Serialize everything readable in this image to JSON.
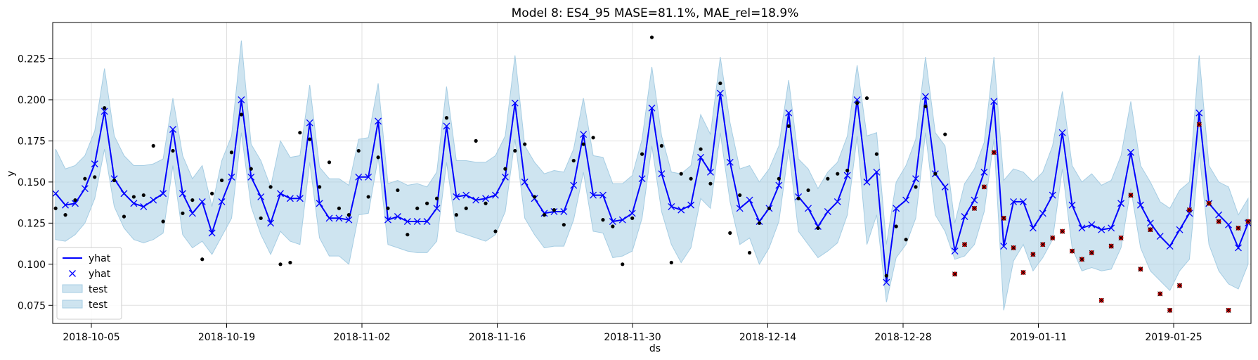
{
  "chart_data": {
    "type": "line",
    "title": "Model 8: ES4_95 MASE=81.1%, MAE_rel=18.9%",
    "xlabel": "ds",
    "ylabel": "y",
    "x_start": "2018-10-01",
    "x_end": "2019-02-02",
    "ylim": [
      0.064,
      0.247
    ],
    "grid": true,
    "legend_position": "lower-left",
    "x_ticks": [
      "2018-10-05",
      "2018-10-19",
      "2018-11-02",
      "2018-11-16",
      "2018-11-30",
      "2018-12-14",
      "2018-12-28",
      "2019-01-11",
      "2019-01-25"
    ],
    "y_ticks": [
      "0.075",
      "0.100",
      "0.125",
      "0.150",
      "0.175",
      "0.200",
      "0.225"
    ],
    "legend": [
      {
        "label": "yhat",
        "kind": "line"
      },
      {
        "label": "yhat",
        "kind": "marker"
      },
      {
        "label": "test",
        "kind": "band"
      },
      {
        "label": "test",
        "kind": "band"
      }
    ],
    "colors": {
      "yhat": "#0000ff",
      "band": "#a6cde3",
      "actual": "#000000",
      "test_actual": "#cc0000"
    },
    "yhat": [
      0.143,
      0.136,
      0.137,
      0.146,
      0.161,
      0.193,
      0.152,
      0.143,
      0.137,
      0.135,
      0.139,
      0.143,
      0.182,
      0.143,
      0.131,
      0.138,
      0.119,
      0.138,
      0.153,
      0.2,
      0.153,
      0.141,
      0.125,
      0.143,
      0.14,
      0.14,
      0.186,
      0.137,
      0.128,
      0.128,
      0.127,
      0.153,
      0.153,
      0.187,
      0.127,
      0.129,
      0.126,
      0.126,
      0.126,
      0.134,
      0.184,
      0.141,
      0.142,
      0.139,
      0.14,
      0.142,
      0.153,
      0.198,
      0.15,
      0.14,
      0.131,
      0.132,
      0.132,
      0.148,
      0.179,
      0.142,
      0.142,
      0.126,
      0.127,
      0.131,
      0.152,
      0.195,
      0.155,
      0.135,
      0.133,
      0.136,
      0.165,
      0.156,
      0.204,
      0.162,
      0.134,
      0.139,
      0.126,
      0.134,
      0.148,
      0.192,
      0.141,
      0.134,
      0.123,
      0.132,
      0.138,
      0.154,
      0.2,
      0.15,
      0.156,
      0.089,
      0.134,
      0.139,
      0.152,
      0.202,
      0.155,
      0.147,
      0.108,
      0.129,
      0.139,
      0.156,
      0.199,
      0.111,
      0.138,
      0.138,
      0.122,
      0.131,
      0.142,
      0.18,
      0.136,
      0.122,
      0.124,
      0.121,
      0.122,
      0.137,
      0.168,
      0.136,
      0.125,
      0.117,
      0.111,
      0.121,
      0.131,
      0.192,
      0.137,
      0.13,
      0.124,
      0.11,
      0.125
    ],
    "lower": [
      0.115,
      0.114,
      0.118,
      0.125,
      0.14,
      0.17,
      0.135,
      0.122,
      0.115,
      0.113,
      0.115,
      0.119,
      0.16,
      0.118,
      0.11,
      0.114,
      0.106,
      0.117,
      0.128,
      0.18,
      0.135,
      0.118,
      0.106,
      0.12,
      0.114,
      0.112,
      0.162,
      0.116,
      0.105,
      0.105,
      0.1,
      0.13,
      0.131,
      0.165,
      0.112,
      0.11,
      0.108,
      0.107,
      0.107,
      0.114,
      0.162,
      0.12,
      0.118,
      0.116,
      0.114,
      0.118,
      0.132,
      0.176,
      0.128,
      0.118,
      0.11,
      0.111,
      0.111,
      0.127,
      0.156,
      0.12,
      0.119,
      0.104,
      0.105,
      0.108,
      0.128,
      0.172,
      0.132,
      0.112,
      0.101,
      0.11,
      0.14,
      0.134,
      0.18,
      0.138,
      0.112,
      0.116,
      0.1,
      0.11,
      0.126,
      0.17,
      0.12,
      0.112,
      0.104,
      0.108,
      0.113,
      0.13,
      0.178,
      0.112,
      0.13,
      0.077,
      0.104,
      0.112,
      0.128,
      0.18,
      0.13,
      0.12,
      0.103,
      0.105,
      0.112,
      0.132,
      0.176,
      0.072,
      0.102,
      0.112,
      0.096,
      0.104,
      0.115,
      0.158,
      0.11,
      0.096,
      0.098,
      0.096,
      0.097,
      0.11,
      0.146,
      0.11,
      0.096,
      0.09,
      0.084,
      0.096,
      0.103,
      0.168,
      0.112,
      0.096,
      0.088,
      0.085,
      0.1
    ],
    "upper": [
      0.17,
      0.158,
      0.16,
      0.166,
      0.181,
      0.219,
      0.178,
      0.166,
      0.16,
      0.16,
      0.161,
      0.164,
      0.201,
      0.166,
      0.152,
      0.16,
      0.135,
      0.163,
      0.178,
      0.236,
      0.173,
      0.163,
      0.147,
      0.175,
      0.165,
      0.166,
      0.209,
      0.159,
      0.152,
      0.152,
      0.148,
      0.176,
      0.177,
      0.21,
      0.149,
      0.151,
      0.148,
      0.149,
      0.147,
      0.156,
      0.208,
      0.163,
      0.163,
      0.162,
      0.162,
      0.166,
      0.178,
      0.227,
      0.172,
      0.162,
      0.155,
      0.157,
      0.156,
      0.17,
      0.201,
      0.166,
      0.165,
      0.149,
      0.149,
      0.154,
      0.176,
      0.22,
      0.178,
      0.156,
      0.155,
      0.16,
      0.191,
      0.179,
      0.226,
      0.186,
      0.158,
      0.16,
      0.15,
      0.158,
      0.172,
      0.212,
      0.164,
      0.158,
      0.146,
      0.156,
      0.162,
      0.178,
      0.221,
      0.178,
      0.18,
      0.112,
      0.15,
      0.16,
      0.176,
      0.226,
      0.18,
      0.172,
      0.125,
      0.149,
      0.158,
      0.174,
      0.226,
      0.151,
      0.158,
      0.156,
      0.15,
      0.156,
      0.172,
      0.205,
      0.16,
      0.15,
      0.155,
      0.148,
      0.151,
      0.166,
      0.199,
      0.16,
      0.15,
      0.138,
      0.134,
      0.145,
      0.15,
      0.227,
      0.16,
      0.15,
      0.147,
      0.13,
      0.14
    ],
    "actual": [
      {
        "x": 0,
        "y": 0.134
      },
      {
        "x": 1,
        "y": 0.13
      },
      {
        "x": 2,
        "y": 0.139
      },
      {
        "x": 3,
        "y": 0.152
      },
      {
        "x": 4,
        "y": 0.153
      },
      {
        "x": 5,
        "y": 0.195
      },
      {
        "x": 6,
        "y": 0.151
      },
      {
        "x": 7,
        "y": 0.129
      },
      {
        "x": 8,
        "y": 0.141
      },
      {
        "x": 9,
        "y": 0.142
      },
      {
        "x": 10,
        "y": 0.172
      },
      {
        "x": 11,
        "y": 0.126
      },
      {
        "x": 12,
        "y": 0.169
      },
      {
        "x": 13,
        "y": 0.131
      },
      {
        "x": 14,
        "y": 0.139
      },
      {
        "x": 15,
        "y": 0.103
      },
      {
        "x": 16,
        "y": 0.143
      },
      {
        "x": 17,
        "y": 0.151
      },
      {
        "x": 18,
        "y": 0.168
      },
      {
        "x": 19,
        "y": 0.191
      },
      {
        "x": 20,
        "y": 0.158
      },
      {
        "x": 21,
        "y": 0.128
      },
      {
        "x": 22,
        "y": 0.147
      },
      {
        "x": 23,
        "y": 0.1
      },
      {
        "x": 24,
        "y": 0.101
      },
      {
        "x": 25,
        "y": 0.18
      },
      {
        "x": 26,
        "y": 0.176
      },
      {
        "x": 27,
        "y": 0.147
      },
      {
        "x": 28,
        "y": 0.162
      },
      {
        "x": 29,
        "y": 0.134
      },
      {
        "x": 30,
        "y": 0.13
      },
      {
        "x": 31,
        "y": 0.169
      },
      {
        "x": 32,
        "y": 0.141
      },
      {
        "x": 33,
        "y": 0.165
      },
      {
        "x": 34,
        "y": 0.134
      },
      {
        "x": 35,
        "y": 0.145
      },
      {
        "x": 36,
        "y": 0.118
      },
      {
        "x": 37,
        "y": 0.134
      },
      {
        "x": 38,
        "y": 0.137
      },
      {
        "x": 39,
        "y": 0.14
      },
      {
        "x": 40,
        "y": 0.189
      },
      {
        "x": 41,
        "y": 0.13
      },
      {
        "x": 42,
        "y": 0.134
      },
      {
        "x": 43,
        "y": 0.175
      },
      {
        "x": 44,
        "y": 0.137
      },
      {
        "x": 45,
        "y": 0.12
      },
      {
        "x": 46,
        "y": 0.158
      },
      {
        "x": 47,
        "y": 0.169
      },
      {
        "x": 48,
        "y": 0.173
      },
      {
        "x": 49,
        "y": 0.141
      },
      {
        "x": 50,
        "y": 0.13
      },
      {
        "x": 51,
        "y": 0.133
      },
      {
        "x": 52,
        "y": 0.124
      },
      {
        "x": 53,
        "y": 0.163
      },
      {
        "x": 54,
        "y": 0.173
      },
      {
        "x": 55,
        "y": 0.177
      },
      {
        "x": 56,
        "y": 0.127
      },
      {
        "x": 57,
        "y": 0.123
      },
      {
        "x": 58,
        "y": 0.1
      },
      {
        "x": 59,
        "y": 0.128
      },
      {
        "x": 60,
        "y": 0.167
      },
      {
        "x": 61,
        "y": 0.238
      },
      {
        "x": 62,
        "y": 0.172
      },
      {
        "x": 63,
        "y": 0.101
      },
      {
        "x": 64,
        "y": 0.155
      },
      {
        "x": 65,
        "y": 0.152
      },
      {
        "x": 66,
        "y": 0.17
      },
      {
        "x": 67,
        "y": 0.149
      },
      {
        "x": 68,
        "y": 0.21
      },
      {
        "x": 69,
        "y": 0.119
      },
      {
        "x": 70,
        "y": 0.142
      },
      {
        "x": 71,
        "y": 0.107
      },
      {
        "x": 72,
        "y": 0.125
      },
      {
        "x": 73,
        "y": 0.134
      },
      {
        "x": 74,
        "y": 0.152
      },
      {
        "x": 75,
        "y": 0.184
      },
      {
        "x": 76,
        "y": 0.14
      },
      {
        "x": 77,
        "y": 0.145
      },
      {
        "x": 78,
        "y": 0.122
      },
      {
        "x": 79,
        "y": 0.152
      },
      {
        "x": 80,
        "y": 0.155
      },
      {
        "x": 81,
        "y": 0.157
      },
      {
        "x": 82,
        "y": 0.198
      },
      {
        "x": 83,
        "y": 0.201
      },
      {
        "x": 84,
        "y": 0.167
      },
      {
        "x": 85,
        "y": 0.093
      },
      {
        "x": 86,
        "y": 0.123
      },
      {
        "x": 87,
        "y": 0.115
      },
      {
        "x": 88,
        "y": 0.147
      },
      {
        "x": 89,
        "y": 0.196
      },
      {
        "x": 90,
        "y": 0.155
      },
      {
        "x": 91,
        "y": 0.179
      }
    ],
    "test_actual": [
      {
        "x": 92,
        "y": 0.094
      },
      {
        "x": 93,
        "y": 0.112
      },
      {
        "x": 94,
        "y": 0.134
      },
      {
        "x": 95,
        "y": 0.147
      },
      {
        "x": 96,
        "y": 0.168
      },
      {
        "x": 97,
        "y": 0.128
      },
      {
        "x": 98,
        "y": 0.11
      },
      {
        "x": 99,
        "y": 0.095
      },
      {
        "x": 100,
        "y": 0.106
      },
      {
        "x": 101,
        "y": 0.112
      },
      {
        "x": 102,
        "y": 0.116
      },
      {
        "x": 103,
        "y": 0.12
      },
      {
        "x": 104,
        "y": 0.108
      },
      {
        "x": 105,
        "y": 0.103
      },
      {
        "x": 106,
        "y": 0.107
      },
      {
        "x": 107,
        "y": 0.078
      },
      {
        "x": 108,
        "y": 0.111
      },
      {
        "x": 109,
        "y": 0.116
      },
      {
        "x": 110,
        "y": 0.142
      },
      {
        "x": 111,
        "y": 0.097
      },
      {
        "x": 112,
        "y": 0.121
      },
      {
        "x": 113,
        "y": 0.082
      },
      {
        "x": 114,
        "y": 0.072
      },
      {
        "x": 115,
        "y": 0.087
      },
      {
        "x": 116,
        "y": 0.133
      },
      {
        "x": 117,
        "y": 0.185
      },
      {
        "x": 118,
        "y": 0.137
      },
      {
        "x": 119,
        "y": 0.126
      },
      {
        "x": 120,
        "y": 0.072
      },
      {
        "x": 121,
        "y": 0.122
      },
      {
        "x": 122,
        "y": 0.126
      }
    ]
  }
}
